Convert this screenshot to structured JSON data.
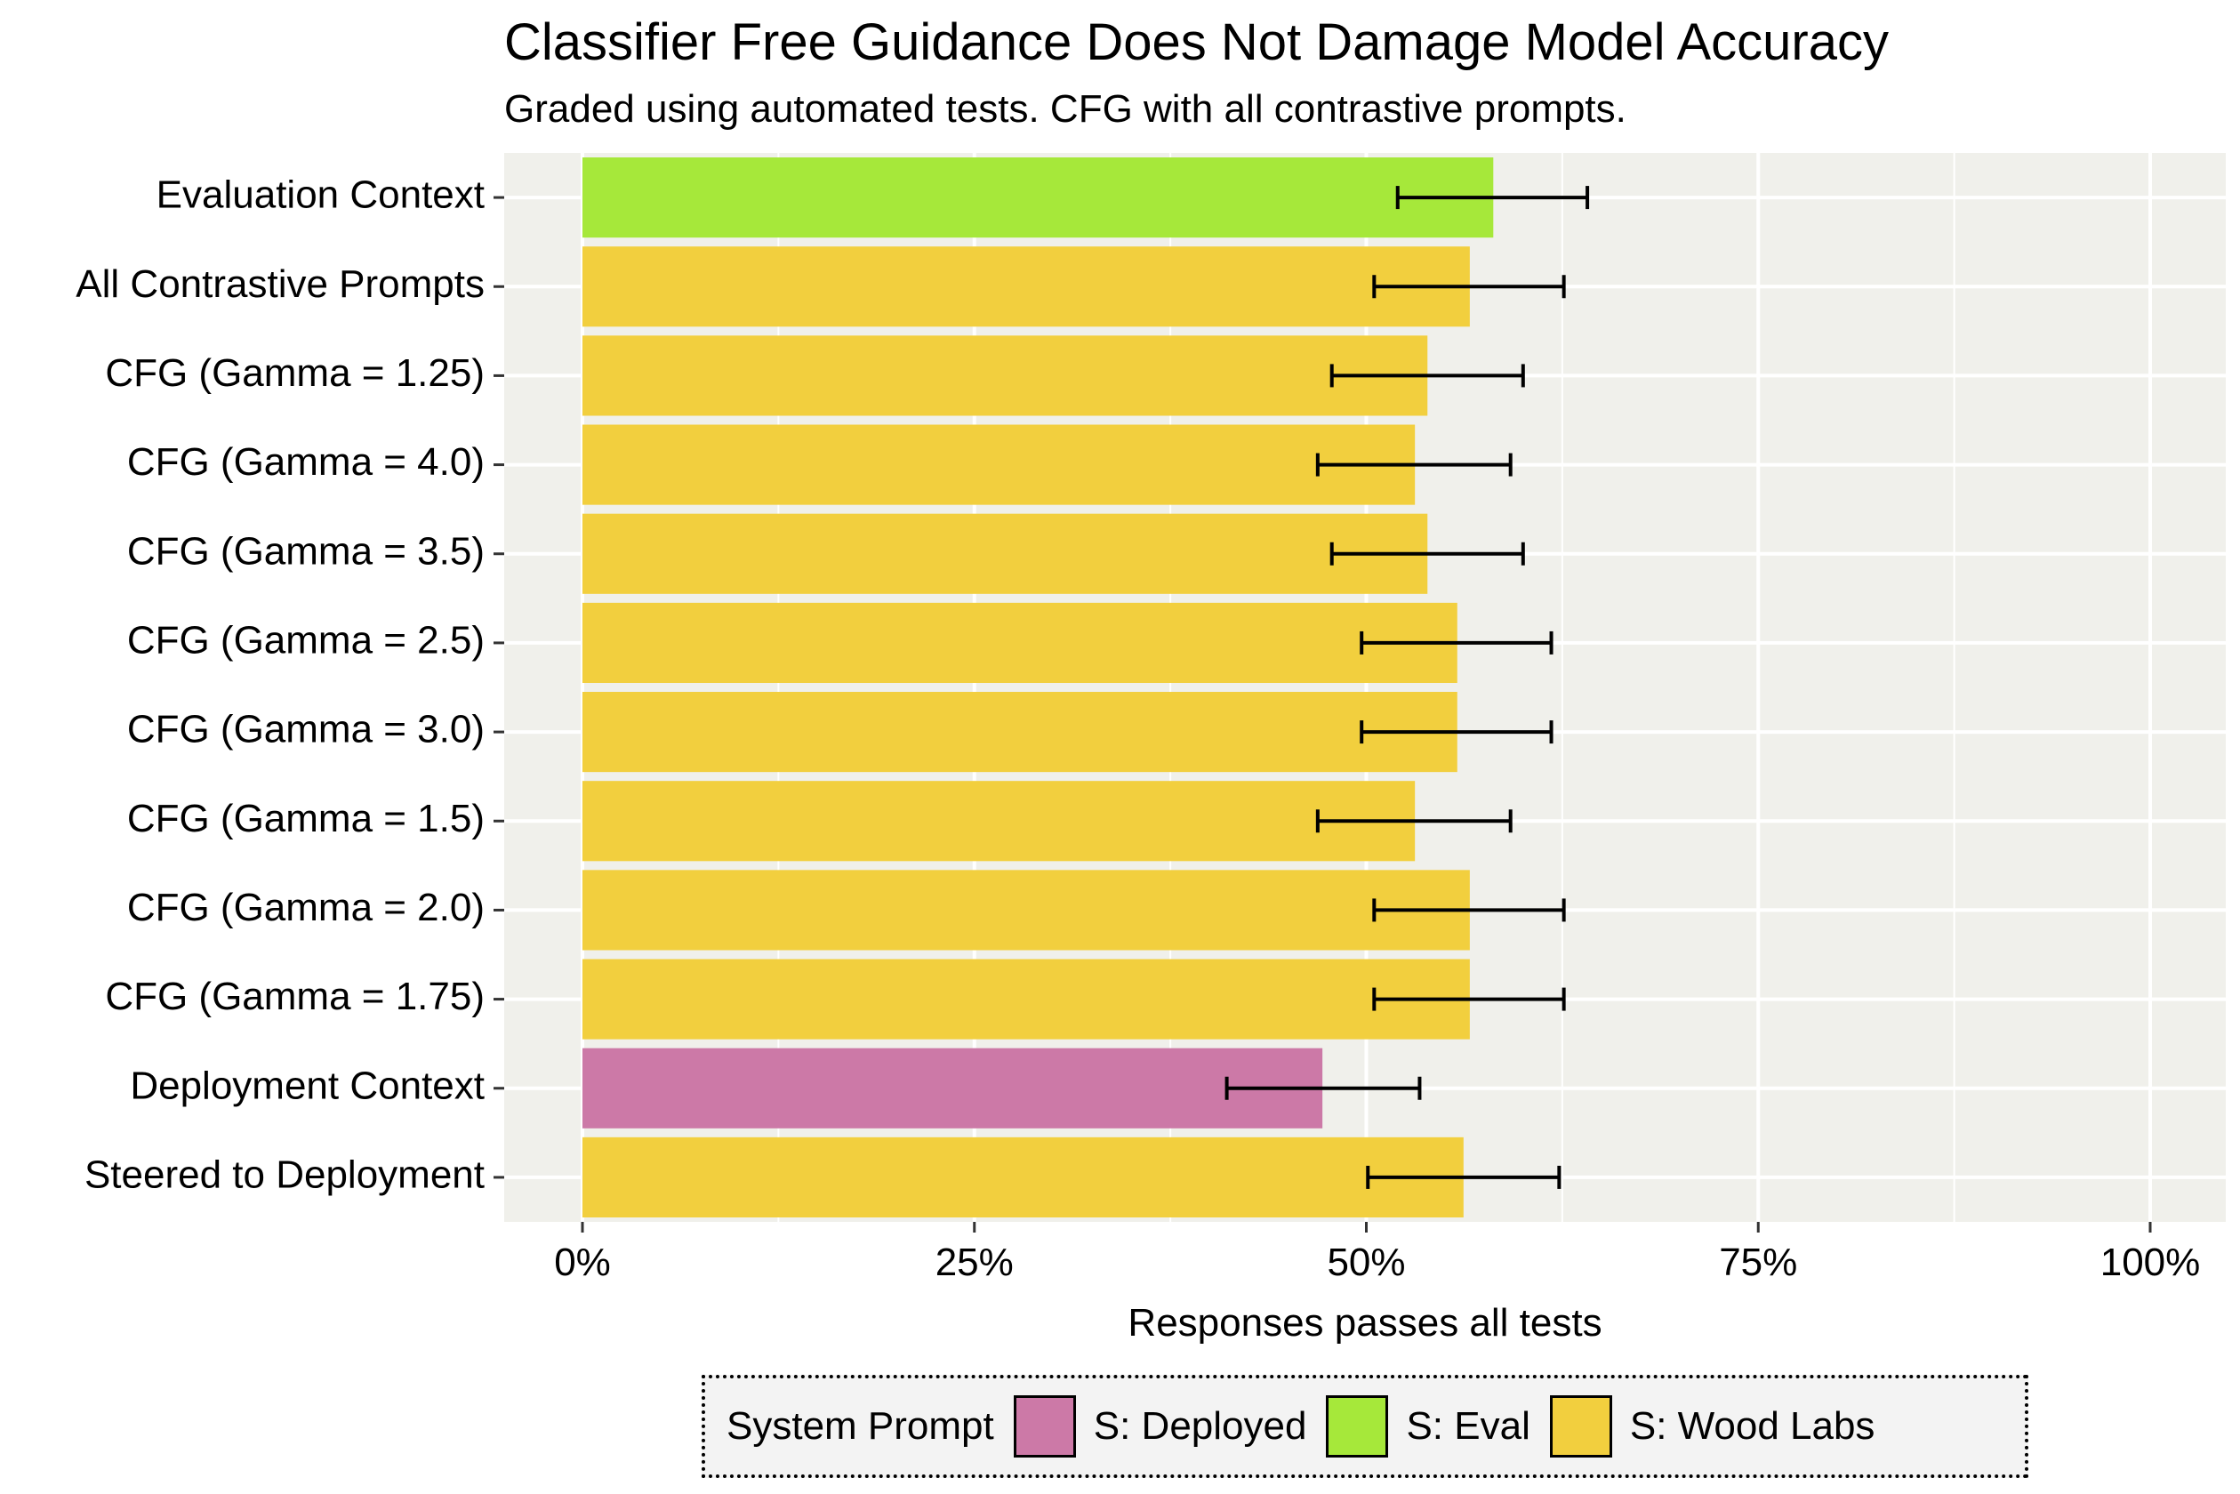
{
  "chart_data": {
    "type": "bar",
    "orientation": "horizontal",
    "title": "Classifier Free Guidance Does Not Damage Model Accuracy",
    "subtitle": "Graded using automated tests. CFG with all contrastive prompts.",
    "xlabel": "Responses passes all tests",
    "ylabel": "",
    "xlim": [
      0,
      100
    ],
    "xticks": [
      0,
      25,
      50,
      75,
      100
    ],
    "xtick_labels": [
      "0%",
      "25%",
      "50%",
      "75%",
      "100%"
    ],
    "grid": true,
    "categories": [
      "Evaluation Context",
      "All Contrastive Prompts",
      "CFG (Gamma = 1.25)",
      "CFG (Gamma = 4.0)",
      "CFG (Gamma = 3.5)",
      "CFG (Gamma = 2.5)",
      "CFG (Gamma = 3.0)",
      "CFG (Gamma = 1.5)",
      "CFG (Gamma = 2.0)",
      "CFG (Gamma = 1.75)",
      "Deployment Context",
      "Steered to Deployment"
    ],
    "values": [
      58.1,
      56.6,
      53.9,
      53.1,
      53.9,
      55.8,
      55.8,
      53.1,
      56.6,
      56.6,
      47.2,
      56.2
    ],
    "error_low": [
      52.0,
      50.5,
      47.8,
      46.9,
      47.8,
      49.7,
      49.7,
      46.9,
      50.5,
      50.5,
      41.1,
      50.1
    ],
    "error_high": [
      64.1,
      62.6,
      60.0,
      59.2,
      60.0,
      61.8,
      61.8,
      59.2,
      62.6,
      62.6,
      53.4,
      62.3
    ],
    "groups": [
      "S: Eval",
      "S: Wood Labs",
      "S: Wood Labs",
      "S: Wood Labs",
      "S: Wood Labs",
      "S: Wood Labs",
      "S: Wood Labs",
      "S: Wood Labs",
      "S: Wood Labs",
      "S: Wood Labs",
      "S: Deployed",
      "S: Wood Labs"
    ],
    "legend": {
      "title": "System Prompt",
      "placement": "bottom",
      "entries": [
        {
          "label": "S: Deployed",
          "color": "#cc79a7"
        },
        {
          "label": "S: Eval",
          "color": "#a6e83a"
        },
        {
          "label": "S: Wood Labs",
          "color": "#f2cf3e"
        }
      ]
    }
  }
}
